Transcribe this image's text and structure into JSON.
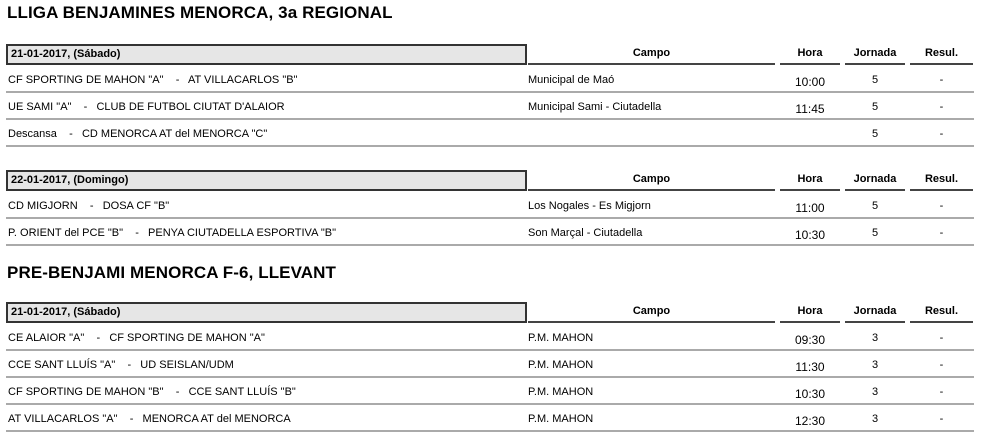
{
  "sections": [
    {
      "title": "LLIGA BENJAMINES MENORCA, 3a REGIONAL",
      "blocks": [
        {
          "date": "21-01-2017,  (Sábado)",
          "rows": [
            {
              "match": "CF SPORTING DE MAHON \"A\"    -   AT VILLACARLOS \"B\"",
              "campo": "Municipal de Maó",
              "hora": "10:00",
              "jornada": "5",
              "resul": "-"
            },
            {
              "match": "UE SAMI \"A\"    -   CLUB DE FUTBOL CIUTAT D'ALAIOR",
              "campo": "Municipal Sami - Ciutadella",
              "hora": "11:45",
              "jornada": "5",
              "resul": "-"
            },
            {
              "match": "Descansa    -   CD MENORCA AT del MENORCA \"C\"",
              "campo": "",
              "hora": "",
              "jornada": "5",
              "resul": "-"
            }
          ]
        },
        {
          "date": "22-01-2017,  (Domingo)",
          "rows": [
            {
              "match": "CD MIGJORN    -   DOSA CF \"B\"",
              "campo": "Los Nogales - Es Migjorn",
              "hora": "11:00",
              "jornada": "5",
              "resul": "-"
            },
            {
              "match": "P. ORIENT del PCE \"B\"    -   PENYA CIUTADELLA ESPORTIVA \"B\"",
              "campo": "Son Marçal - Ciutadella",
              "hora": "10:30",
              "jornada": "5",
              "resul": "-"
            }
          ]
        }
      ]
    },
    {
      "title": "PRE-BENJAMI MENORCA F-6, LLEVANT",
      "blocks": [
        {
          "date": "21-01-2017,  (Sábado)",
          "rows": [
            {
              "match": "CE ALAIOR \"A\"    -   CF SPORTING DE MAHON \"A\"",
              "campo": "P.M. MAHON",
              "hora": "09:30",
              "jornada": "3",
              "resul": "-"
            },
            {
              "match": "CCE SANT LLUÍS \"A\"    -   UD SEISLAN/UDM",
              "campo": "P.M. MAHON",
              "hora": "11:30",
              "jornada": "3",
              "resul": "-"
            },
            {
              "match": "CF SPORTING DE MAHON \"B\"    -   CCE SANT LLUÍS \"B\"",
              "campo": "P.M. MAHON",
              "hora": "10:30",
              "jornada": "3",
              "resul": "-"
            },
            {
              "match": "AT VILLACARLOS \"A\"    -   MENORCA AT del MENORCA",
              "campo": "P.M. MAHON",
              "hora": "12:30",
              "jornada": "3",
              "resul": "-"
            }
          ]
        }
      ]
    }
  ],
  "columns": {
    "campo": "Campo",
    "hora": "Hora",
    "jornada": "Jornada",
    "resul": "Resul."
  }
}
